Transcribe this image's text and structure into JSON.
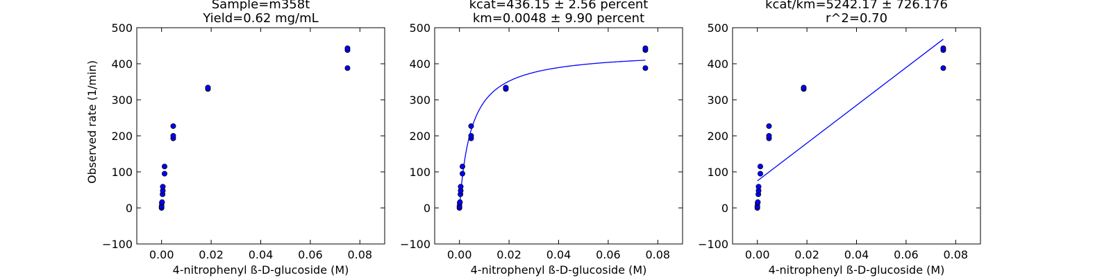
{
  "figure": {
    "background": "#ffffff",
    "marker_color": "#0000ff",
    "line_color": "#0000ff"
  },
  "chart_data": [
    {
      "type": "scatter",
      "title_lines": [
        "Sample=m358t",
        "Yield=0.62 mg/mL"
      ],
      "xlabel": "4-nitrophenyl ß-D-glucoside (M)",
      "ylabel": "Observed rate (1/min)",
      "xlim": [
        -0.01,
        0.09
      ],
      "ylim": [
        -100,
        500
      ],
      "xticks": [
        "0.00",
        "0.02",
        "0.04",
        "0.06",
        "0.08"
      ],
      "xtick_values": [
        0,
        0.02,
        0.04,
        0.06,
        0.08
      ],
      "yticks": [
        "−100",
        "0",
        "100",
        "200",
        "300",
        "400",
        "500"
      ],
      "ytick_values": [
        -100,
        0,
        100,
        200,
        300,
        400,
        500
      ],
      "points": [
        {
          "x": 0,
          "y": 0
        },
        {
          "x": 0,
          "y": 5
        },
        {
          "x": 0.0001,
          "y": 14
        },
        {
          "x": 0.0002,
          "y": 16
        },
        {
          "x": 0.0004,
          "y": 38
        },
        {
          "x": 0.0005,
          "y": 48
        },
        {
          "x": 0.0005,
          "y": 59
        },
        {
          "x": 0.0012,
          "y": 95
        },
        {
          "x": 0.0012,
          "y": 115
        },
        {
          "x": 0.0047,
          "y": 193
        },
        {
          "x": 0.0047,
          "y": 200
        },
        {
          "x": 0.0047,
          "y": 227
        },
        {
          "x": 0.0187,
          "y": 330
        },
        {
          "x": 0.0187,
          "y": 334
        },
        {
          "x": 0.075,
          "y": 388
        },
        {
          "x": 0.075,
          "y": 438
        },
        {
          "x": 0.075,
          "y": 443
        }
      ]
    },
    {
      "type": "scatter",
      "title_lines": [
        "kcat=436.15 ± 2.56 percent",
        "km=0.0048 ± 9.90 percent"
      ],
      "xlabel": "4-nitrophenyl ß-D-glucoside (M)",
      "xlim": [
        -0.01,
        0.09
      ],
      "ylim": [
        -100,
        500
      ],
      "xticks": [
        "0.00",
        "0.02",
        "0.04",
        "0.06",
        "0.08"
      ],
      "xtick_values": [
        0,
        0.02,
        0.04,
        0.06,
        0.08
      ],
      "yticks": [
        "−100",
        "0",
        "100",
        "200",
        "300",
        "400",
        "500"
      ],
      "ytick_values": [
        -100,
        0,
        100,
        200,
        300,
        400,
        500
      ],
      "points": [
        {
          "x": 0,
          "y": 0
        },
        {
          "x": 0,
          "y": 5
        },
        {
          "x": 0.0001,
          "y": 14
        },
        {
          "x": 0.0002,
          "y": 16
        },
        {
          "x": 0.0004,
          "y": 38
        },
        {
          "x": 0.0005,
          "y": 48
        },
        {
          "x": 0.0005,
          "y": 59
        },
        {
          "x": 0.0012,
          "y": 95
        },
        {
          "x": 0.0012,
          "y": 115
        },
        {
          "x": 0.0047,
          "y": 193
        },
        {
          "x": 0.0047,
          "y": 200
        },
        {
          "x": 0.0047,
          "y": 227
        },
        {
          "x": 0.0187,
          "y": 330
        },
        {
          "x": 0.0187,
          "y": 334
        },
        {
          "x": 0.075,
          "y": 388
        },
        {
          "x": 0.075,
          "y": 438
        },
        {
          "x": 0.075,
          "y": 443
        }
      ],
      "fit": {
        "model": "michaelis-menten",
        "kcat": 436.15,
        "km": 0.0048,
        "x_range": [
          0,
          0.075
        ]
      }
    },
    {
      "type": "scatter",
      "title_lines": [
        "kcat/km=5242.17 ± 726.176",
        "r^2=0.70"
      ],
      "xlabel": "4-nitrophenyl ß-D-glucoside (M)",
      "xlim": [
        -0.01,
        0.09
      ],
      "ylim": [
        -100,
        500
      ],
      "xticks": [
        "0.00",
        "0.02",
        "0.04",
        "0.06",
        "0.08"
      ],
      "xtick_values": [
        0,
        0.02,
        0.04,
        0.06,
        0.08
      ],
      "yticks": [
        "−100",
        "0",
        "100",
        "200",
        "300",
        "400",
        "500"
      ],
      "ytick_values": [
        -100,
        0,
        100,
        200,
        300,
        400,
        500
      ],
      "points": [
        {
          "x": 0,
          "y": 0
        },
        {
          "x": 0,
          "y": 5
        },
        {
          "x": 0.0001,
          "y": 14
        },
        {
          "x": 0.0002,
          "y": 16
        },
        {
          "x": 0.0004,
          "y": 38
        },
        {
          "x": 0.0005,
          "y": 48
        },
        {
          "x": 0.0005,
          "y": 59
        },
        {
          "x": 0.0012,
          "y": 95
        },
        {
          "x": 0.0012,
          "y": 115
        },
        {
          "x": 0.0047,
          "y": 193
        },
        {
          "x": 0.0047,
          "y": 200
        },
        {
          "x": 0.0047,
          "y": 227
        },
        {
          "x": 0.0187,
          "y": 330
        },
        {
          "x": 0.0187,
          "y": 334
        },
        {
          "x": 0.075,
          "y": 388
        },
        {
          "x": 0.075,
          "y": 438
        },
        {
          "x": 0.075,
          "y": 443
        }
      ],
      "fit": {
        "model": "linear",
        "slope": 5242.17,
        "intercept": 75,
        "x_range": [
          0,
          0.075
        ]
      }
    }
  ]
}
